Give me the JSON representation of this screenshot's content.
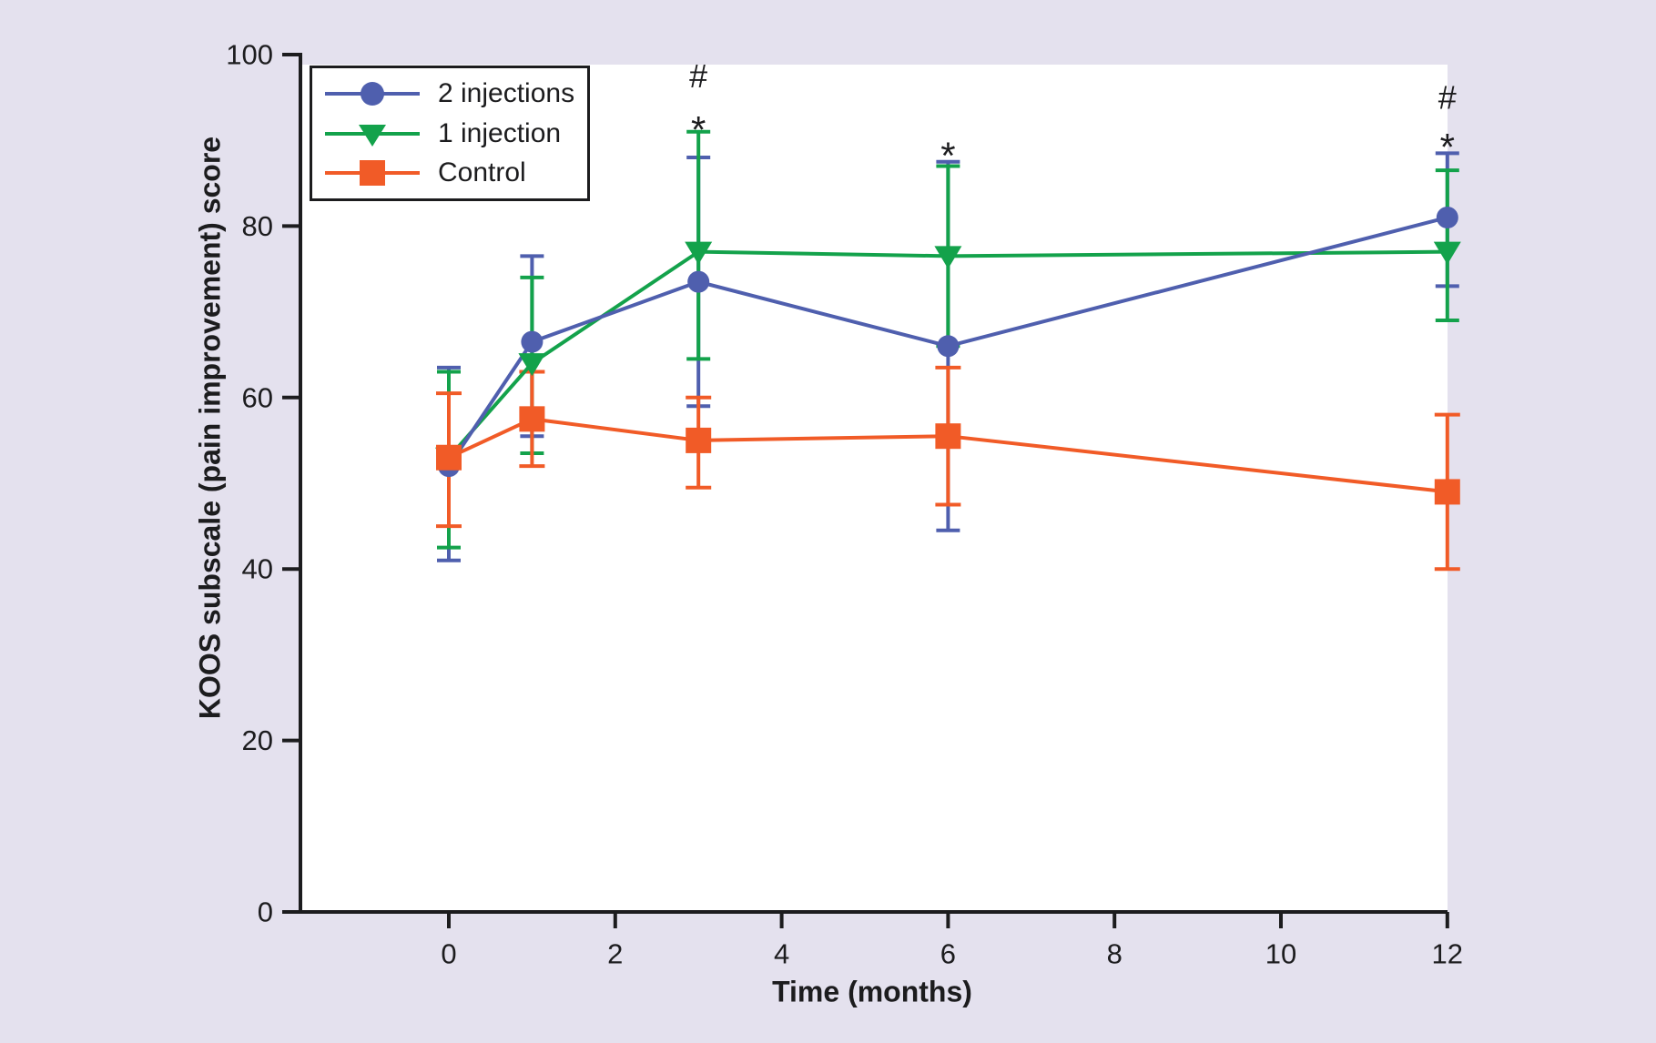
{
  "figure": {
    "background_color": "#e4e1ee",
    "plot_background": "#ffffff",
    "axis_color": "#1c1c1e"
  },
  "chart_data": {
    "type": "line",
    "title": "",
    "xlabel": "Time (months)",
    "ylabel": "KOOS subscale (pain improvement) score",
    "x_ticks": [
      0,
      2,
      4,
      6,
      8,
      10,
      12
    ],
    "y_ticks": [
      0,
      20,
      40,
      60,
      80,
      100
    ],
    "ylim": [
      0,
      100
    ],
    "xlim": [
      -1.8,
      12
    ],
    "grid": false,
    "legend_position": "top-left",
    "error_bars": true,
    "x": [
      0,
      1,
      3,
      6,
      12
    ],
    "series": [
      {
        "name": "2 injections",
        "color": "#4f5fae",
        "marker": "circle",
        "values": [
          52,
          66.5,
          73.5,
          66,
          81
        ],
        "err_low": [
          41,
          55.5,
          59,
          44.5,
          73
        ],
        "err_high": [
          63.5,
          76.5,
          88,
          87.5,
          88.5
        ]
      },
      {
        "name": "1 injection",
        "color": "#13a24b",
        "marker": "triangle-down",
        "values": [
          53,
          64,
          77,
          76.5,
          77
        ],
        "err_low": [
          42.5,
          53.5,
          64.5,
          66,
          69
        ],
        "err_high": [
          63,
          74,
          91,
          87,
          86.5
        ]
      },
      {
        "name": "Control",
        "color": "#f15b27",
        "marker": "square",
        "values": [
          53,
          57.5,
          55,
          55.5,
          49
        ],
        "err_low": [
          45,
          52,
          49.5,
          47.5,
          40
        ],
        "err_high": [
          60.5,
          63,
          60,
          63.5,
          58
        ]
      }
    ],
    "annotations": [
      {
        "text": "#",
        "x": 3,
        "y": 97.5
      },
      {
        "text": "*",
        "x": 3,
        "y": 92.5
      },
      {
        "text": "*",
        "x": 6,
        "y": 89.5
      },
      {
        "text": "#",
        "x": 12,
        "y": 95
      },
      {
        "text": "*",
        "x": 12,
        "y": 90.5
      }
    ]
  }
}
